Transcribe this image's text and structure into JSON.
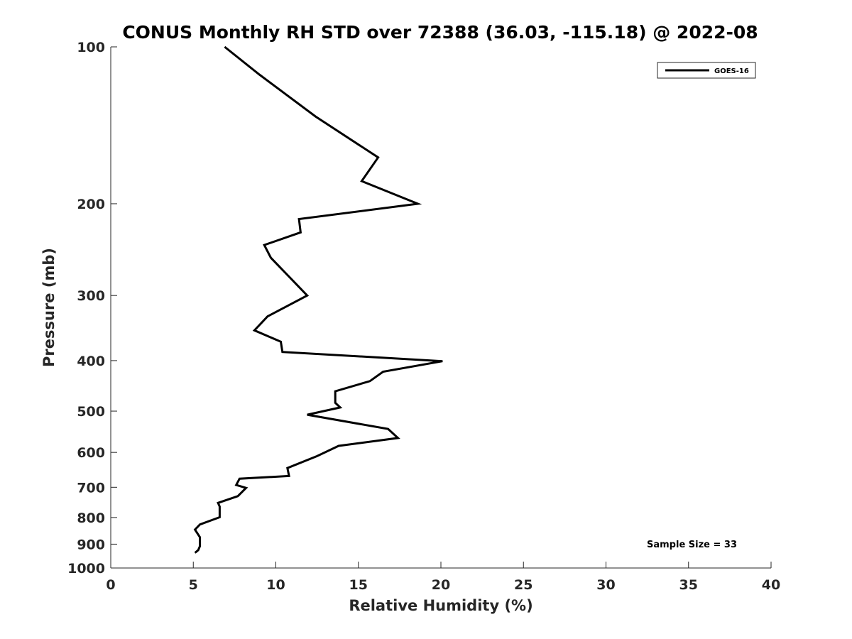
{
  "chart_data": {
    "type": "line",
    "title": "CONUS Monthly RH STD over 72388 (36.03, -115.18) @ 2022-08",
    "xlabel": "Relative Humidity (%)",
    "ylabel": "Pressure (mb)",
    "xlim": [
      0,
      40
    ],
    "ylim": [
      1000,
      100
    ],
    "yscale": "log",
    "xticks": [
      "0",
      "5",
      "10",
      "15",
      "20",
      "25",
      "30",
      "35",
      "40"
    ],
    "yticks": [
      "100",
      "200",
      "300",
      "400",
      "500",
      "600",
      "700",
      "800",
      "900",
      "1000"
    ],
    "legend": {
      "location": "top-right",
      "entries": [
        "GOES-16"
      ]
    },
    "annotation": "Sample Size = 33",
    "grid": false,
    "series": [
      {
        "name": "GOES-16",
        "color": "#000000",
        "x": [
          6.9,
          9.0,
          12.4,
          16.2,
          15.2,
          18.6,
          11.4,
          11.5,
          9.3,
          9.7,
          11.9,
          9.5,
          8.7,
          10.3,
          10.4,
          20.1,
          16.5,
          15.7,
          13.6,
          13.6,
          13.9,
          11.9,
          16.8,
          17.4,
          13.8,
          12.5,
          10.7,
          10.8,
          7.8,
          7.6,
          8.2,
          7.7,
          6.5,
          6.6,
          6.6,
          5.4,
          5.1,
          5.4,
          5.4,
          5.3,
          5.1
        ],
        "y": [
          100,
          113,
          136,
          163,
          181,
          200,
          214,
          227,
          240,
          254,
          300,
          329,
          350,
          368,
          385,
          401,
          420,
          438,
          458,
          482,
          492,
          508,
          541,
          563,
          583,
          610,
          643,
          666,
          674,
          693,
          702,
          728,
          750,
          762,
          799,
          825,
          844,
          873,
          908,
          924,
          935
        ]
      }
    ]
  }
}
